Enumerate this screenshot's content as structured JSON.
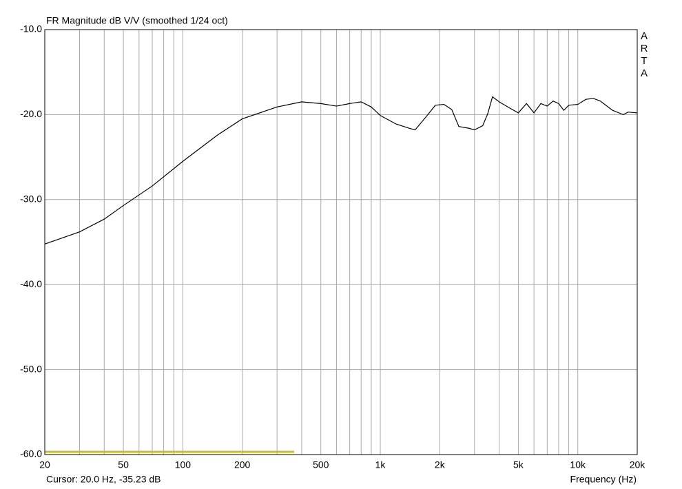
{
  "chart_data": {
    "type": "line",
    "title": "FR Magnitude dB V/V (smoothed 1/24 oct)",
    "x_label": "Frequency (Hz)",
    "cursor": "Cursor: 20.0 Hz, -35.23 dB",
    "watermark": "ARTA",
    "x_scale": "log",
    "grid": true,
    "xlim": [
      20,
      20000
    ],
    "ylim": [
      -60,
      -10
    ],
    "xticks": [
      20,
      50,
      100,
      200,
      500,
      {
        "value": 1000,
        "label": "1k"
      },
      {
        "value": 2000,
        "label": "2k"
      },
      {
        "value": 5000,
        "label": "5k"
      },
      {
        "value": 10000,
        "label": "10k"
      },
      {
        "value": 20000,
        "label": "20k"
      }
    ],
    "xgrid": [
      30,
      40,
      50,
      60,
      70,
      80,
      90,
      100,
      200,
      300,
      400,
      500,
      600,
      700,
      800,
      900,
      1000,
      2000,
      3000,
      4000,
      5000,
      6000,
      7000,
      8000,
      9000,
      10000
    ],
    "yticks": [
      {
        "value": -10,
        "label": "-10.0"
      },
      {
        "value": -20,
        "label": "-20.0"
      },
      {
        "value": -30,
        "label": "-30.0"
      },
      {
        "value": -40,
        "label": "-40.0"
      },
      {
        "value": -50,
        "label": "-50.0"
      },
      {
        "value": -60,
        "label": "-60.0"
      }
    ],
    "x": [
      20,
      30,
      40,
      50,
      70,
      100,
      150,
      200,
      300,
      400,
      500,
      600,
      700,
      800,
      900,
      1000,
      1200,
      1400,
      1500,
      1700,
      1900,
      2100,
      2300,
      2500,
      2800,
      3000,
      3300,
      3500,
      3700,
      4000,
      4500,
      5000,
      5500,
      6000,
      6500,
      7000,
      7500,
      8000,
      8500,
      9000,
      10000,
      11000,
      12000,
      13000,
      15000,
      17000,
      18000,
      20000
    ],
    "series": [
      {
        "color": "#000000",
        "values": [
          -35.23,
          -33.8,
          -32.3,
          -30.7,
          -28.4,
          -25.5,
          -22.4,
          -20.5,
          -19.1,
          -18.5,
          -18.7,
          -19.0,
          -18.7,
          -18.5,
          -19.1,
          -20.1,
          -21.1,
          -21.6,
          -21.8,
          -20.3,
          -18.9,
          -18.8,
          -19.4,
          -21.4,
          -21.6,
          -21.8,
          -21.3,
          -19.9,
          -17.9,
          -18.5,
          -19.2,
          -19.8,
          -18.7,
          -19.8,
          -18.7,
          -19.0,
          -18.4,
          -18.7,
          -19.5,
          -18.9,
          -18.8,
          -18.2,
          -18.1,
          -18.4,
          -19.5,
          -20.0,
          -19.7,
          -19.8
        ]
      }
    ]
  }
}
